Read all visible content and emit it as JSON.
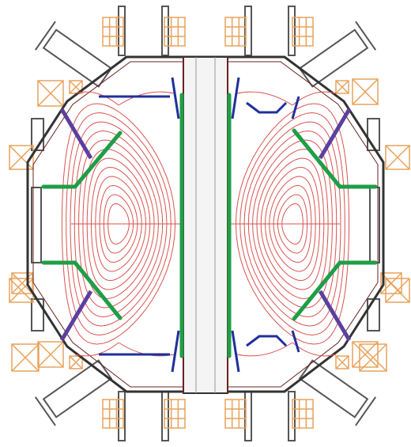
{
  "colors": {
    "background": "#ffffff",
    "vessel_outline": "#333333",
    "flux_surfaces": "#d9534f",
    "coils": "#e8a25a",
    "divertor_plates": "#1e9e46",
    "baffles": "#1f2f9c",
    "port_flanges": "#555555",
    "wall_dark": "#6b2020",
    "supports": "#5b3f9e",
    "center_column": "#f4f4f4"
  },
  "components": {
    "vacuum_vessel": "vessel-outline",
    "center_column": "center-stack",
    "plasma_flux_surfaces": "nested-closed-contours",
    "divertor_plates": "thick-green-plates",
    "baffles": "blue-baffle-lines",
    "poloidal_field_coils": "orange-coil-boxes",
    "ports": "grey-port-flanges"
  }
}
